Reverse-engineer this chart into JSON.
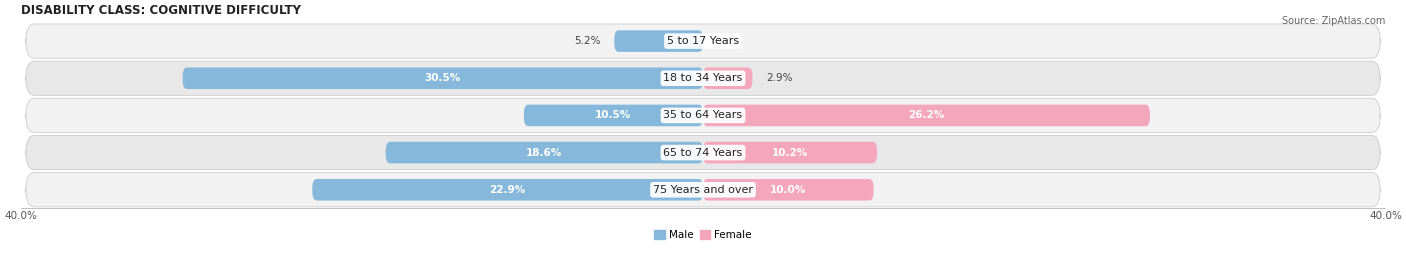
{
  "title": "DISABILITY CLASS: COGNITIVE DIFFICULTY",
  "source": "Source: ZipAtlas.com",
  "categories": [
    "5 to 17 Years",
    "18 to 34 Years",
    "35 to 64 Years",
    "65 to 74 Years",
    "75 Years and over"
  ],
  "male_values": [
    5.2,
    30.5,
    10.5,
    18.6,
    22.9
  ],
  "female_values": [
    0.0,
    2.9,
    26.2,
    10.2,
    10.0
  ],
  "male_color": "#85b8db",
  "female_color": "#f4a7bc",
  "male_color_dark": "#5b9dc8",
  "female_color_dark": "#e8698a",
  "male_label": "Male",
  "female_label": "Female",
  "axis_max": 40.0,
  "axis_min": -40.0,
  "row_colors": [
    "#f2f2f2",
    "#e8e8e8",
    "#f2f2f2",
    "#e8e8e8",
    "#f2f2f2"
  ],
  "bar_height": 0.58,
  "title_fontsize": 8.5,
  "label_fontsize": 7.5,
  "cat_fontsize": 8,
  "tick_fontsize": 7.5,
  "source_fontsize": 7,
  "value_label_threshold": 7
}
